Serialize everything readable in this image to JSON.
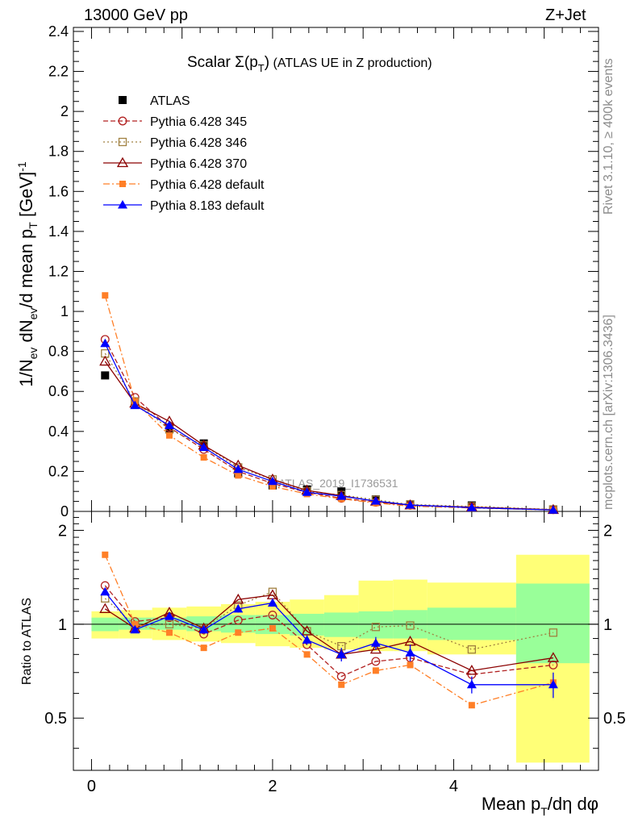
{
  "header": {
    "left": "13000 GeV pp",
    "right": "Z+Jet"
  },
  "side_labels": {
    "rivet": "Rivet 3.1.10, ≥ 400k events",
    "mcplots": "mcplots.cern.ch [arXiv:1306.3436]"
  },
  "watermark": "ATLAS_2019_I1736531",
  "colors": {
    "band_stat": "#99ff99",
    "band_syst": "#ffff77",
    "atlas": "#000000",
    "p345": "#b22222",
    "p346": "#a08040",
    "p370": "#8b0000",
    "p6def": "#ff7f27",
    "p8def": "#0000ff"
  },
  "chart_data": [
    {
      "type": "line",
      "title": "Scalar Σ(p_T) (ATLAS UE in Z production)",
      "title_parts": {
        "pre": "Scalar Σ(p",
        "sub": "T",
        "post": ") (ATLAS UE in Z production)"
      },
      "ylabel": "1/N_ev dN_ev/d mean p_T [GeV]^-1",
      "ylabel_parts": {
        "a": "1/N",
        "a_sub": "ev",
        "b": " dN",
        "b_sub": "ev",
        "c": "/d mean p",
        "c_sub": "T",
        "d": " [GeV]",
        "d_sup": "-1"
      },
      "xlim": [
        -0.2,
        5.6
      ],
      "ylim": [
        0,
        2.42
      ],
      "y_ticks": [
        0,
        0.2,
        0.4,
        0.6,
        0.8,
        1,
        1.2,
        1.4,
        1.6,
        1.8,
        2,
        2.2,
        2.4
      ],
      "y_tick_labels": [
        "0",
        "0.2",
        "0.4",
        "0.6",
        "0.8",
        "1",
        "1.2",
        "1.4",
        "1.6",
        "1.8",
        "2",
        "2.2",
        "2.4"
      ],
      "x": [
        0.15,
        0.48,
        0.86,
        1.24,
        1.62,
        2.0,
        2.38,
        2.76,
        3.14,
        3.52,
        4.2,
        5.1
      ],
      "series": [
        {
          "name": "ATLAS",
          "key": "atlas",
          "marker": "square-filled",
          "line": "none",
          "values": [
            0.68,
            0.55,
            0.41,
            0.34,
            0.19,
            0.13,
            0.11,
            0.1,
            0.06,
            0.035,
            0.03,
            0.01
          ]
        },
        {
          "name": "Pythia 6.428 345",
          "key": "p345",
          "marker": "circle-open",
          "line": "dashed",
          "values": [
            0.86,
            0.57,
            0.42,
            0.31,
            0.2,
            0.14,
            0.095,
            0.066,
            0.046,
            0.03,
            0.021,
            0.009
          ]
        },
        {
          "name": "Pythia 6.428 346",
          "key": "p346",
          "marker": "square-open",
          "line": "dotted",
          "values": [
            0.79,
            0.55,
            0.41,
            0.33,
            0.22,
            0.16,
            0.1,
            0.082,
            0.058,
            0.035,
            0.025,
            0.01
          ]
        },
        {
          "name": "Pythia 6.428 370",
          "key": "p370",
          "marker": "triangle-open",
          "line": "solid",
          "values": [
            0.75,
            0.54,
            0.45,
            0.33,
            0.23,
            0.16,
            0.105,
            0.079,
            0.05,
            0.031,
            0.021,
            0.008
          ]
        },
        {
          "name": "Pythia 6.428 default",
          "key": "p6def",
          "marker": "square-filled-small",
          "line": "dashdot",
          "values": [
            1.08,
            0.55,
            0.38,
            0.27,
            0.18,
            0.125,
            0.087,
            0.063,
            0.042,
            0.026,
            0.017,
            0.007
          ]
        },
        {
          "name": "Pythia 8.183 default",
          "key": "p8def",
          "marker": "triangle-filled",
          "line": "solid",
          "values": [
            0.84,
            0.53,
            0.43,
            0.32,
            0.21,
            0.15,
            0.096,
            0.076,
            0.052,
            0.032,
            0.019,
            0.007
          ]
        }
      ]
    },
    {
      "type": "line",
      "ylabel": "Ratio to ATLAS",
      "xlabel": "Mean p_T/dη dφ",
      "xlabel_parts": {
        "pre": "Mean p",
        "sub": "T",
        "post": "/dη dφ"
      },
      "xlim": [
        -0.2,
        5.6
      ],
      "ylim": [
        0.34,
        2.3
      ],
      "y_ticks": [
        0.5,
        1,
        2
      ],
      "y_tick_labels": [
        "0.5",
        "1",
        "2"
      ],
      "x_ticks": [
        0,
        2,
        4
      ],
      "x_tick_labels": [
        "0",
        "2",
        "4"
      ],
      "bin_edges": [
        0.0,
        0.3,
        0.67,
        1.05,
        1.43,
        1.81,
        2.19,
        2.57,
        2.95,
        3.33,
        3.71,
        4.69,
        5.5
      ],
      "band_stat_low": [
        0.95,
        0.96,
        0.96,
        0.95,
        0.94,
        0.93,
        0.92,
        0.91,
        0.9,
        0.9,
        0.89,
        0.75
      ],
      "band_stat_high": [
        1.05,
        1.05,
        1.05,
        1.06,
        1.07,
        1.07,
        1.08,
        1.09,
        1.1,
        1.11,
        1.13,
        1.35
      ],
      "band_syst_low": [
        0.9,
        0.9,
        0.89,
        0.88,
        0.87,
        0.85,
        0.84,
        0.83,
        0.82,
        0.82,
        0.8,
        0.36
      ],
      "band_syst_high": [
        1.1,
        1.11,
        1.13,
        1.14,
        1.16,
        1.18,
        1.2,
        1.24,
        1.38,
        1.39,
        1.36,
        1.67
      ],
      "x": [
        0.15,
        0.48,
        0.86,
        1.24,
        1.62,
        2.0,
        2.38,
        2.76,
        3.14,
        3.52,
        4.2,
        5.1
      ],
      "series": [
        {
          "name": "Pythia 6.428 345",
          "key": "p345",
          "values": [
            1.33,
            1.02,
            1.05,
            0.93,
            1.03,
            1.07,
            0.86,
            0.68,
            0.76,
            0.78,
            0.69,
            0.74
          ]
        },
        {
          "name": "Pythia 6.428 346",
          "key": "p346",
          "values": [
            1.21,
            0.99,
            1.0,
            0.97,
            1.15,
            1.27,
            0.95,
            0.85,
            0.98,
            0.99,
            0.83,
            0.94
          ]
        },
        {
          "name": "Pythia 6.428 370",
          "key": "p370",
          "values": [
            1.12,
            0.97,
            1.09,
            0.97,
            1.2,
            1.24,
            0.95,
            0.8,
            0.83,
            0.88,
            0.71,
            0.78
          ]
        },
        {
          "name": "Pythia 6.428 default",
          "key": "p6def",
          "values": [
            1.67,
            1.0,
            0.94,
            0.84,
            0.94,
            0.97,
            0.8,
            0.64,
            0.71,
            0.74,
            0.55,
            0.65
          ]
        },
        {
          "name": "Pythia 8.183 default",
          "key": "p8def",
          "values": [
            1.27,
            0.96,
            1.06,
            0.96,
            1.12,
            1.17,
            0.89,
            0.8,
            0.87,
            0.81,
            0.64,
            0.64
          ],
          "errors": [
            0.02,
            0.01,
            0.02,
            0.02,
            0.03,
            0.03,
            0.03,
            0.04,
            0.04,
            0.05,
            0.04,
            0.06
          ]
        }
      ]
    }
  ]
}
